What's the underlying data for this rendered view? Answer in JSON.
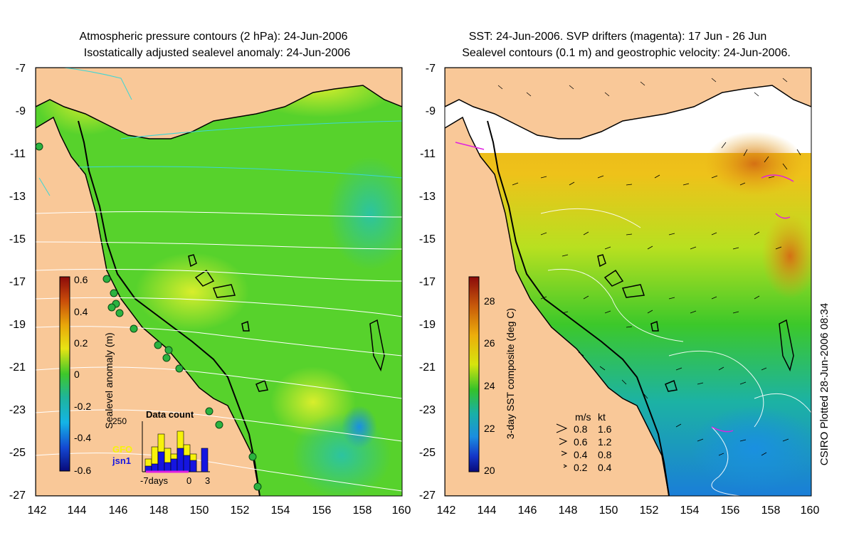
{
  "left_panel": {
    "title_line1": "Atmospheric pressure contours (2 hPa): 24-Jun-2006",
    "title_line2": "Isostatically adjusted sealevel anomaly: 24-Jun-2006",
    "colorbar_label": "Sealevel anomaly (m)",
    "colorbar_ticks": [
      "0.6",
      "0.4",
      "0.2",
      "0",
      "-0.2",
      "-0.4",
      "-0.6"
    ],
    "inset": {
      "title": "Data count",
      "ymax_label": "250",
      "legend_gfo": "GFO",
      "legend_jsn1": "jsn1",
      "x_ticks": [
        "-7days",
        "0",
        "3"
      ],
      "gfo_color": "#f7f20a",
      "jsn1_color": "#1515e0"
    }
  },
  "right_panel": {
    "title_line1": "SST: 24-Jun-2006. SVP drifters (magenta): 17 Jun - 26 Jun",
    "title_line2": "Sealevel contours (0.1 m) and geostrophic velocity: 24-Jun-2006.",
    "colorbar_label": "3-day SST composite (deg C)",
    "colorbar_ticks": [
      "28",
      "26",
      "24",
      "22",
      "20"
    ],
    "velocity_legend": {
      "header_ms": "m/s",
      "header_kt": "kt",
      "rows": [
        {
          "ms": "0.8",
          "kt": "1.6"
        },
        {
          "ms": "0.6",
          "kt": "1.2"
        },
        {
          "ms": "0.4",
          "kt": "0.8"
        },
        {
          "ms": "0.2",
          "kt": "0.4"
        }
      ]
    }
  },
  "axes": {
    "y_ticks": [
      "-7",
      "-9",
      "-11",
      "-13",
      "-15",
      "-17",
      "-19",
      "-21",
      "-23",
      "-25",
      "-27"
    ],
    "x_ticks": [
      "142",
      "144",
      "146",
      "148",
      "150",
      "152",
      "154",
      "156",
      "158",
      "160"
    ]
  },
  "plotted_note": "CSIRO Plotted 28-Jun-2006 08:34",
  "colors": {
    "land": "#f9c898",
    "ocean_green": "#57d22c",
    "drifter_magenta": "#e020e0",
    "tide_gauge": "#2bb340"
  }
}
